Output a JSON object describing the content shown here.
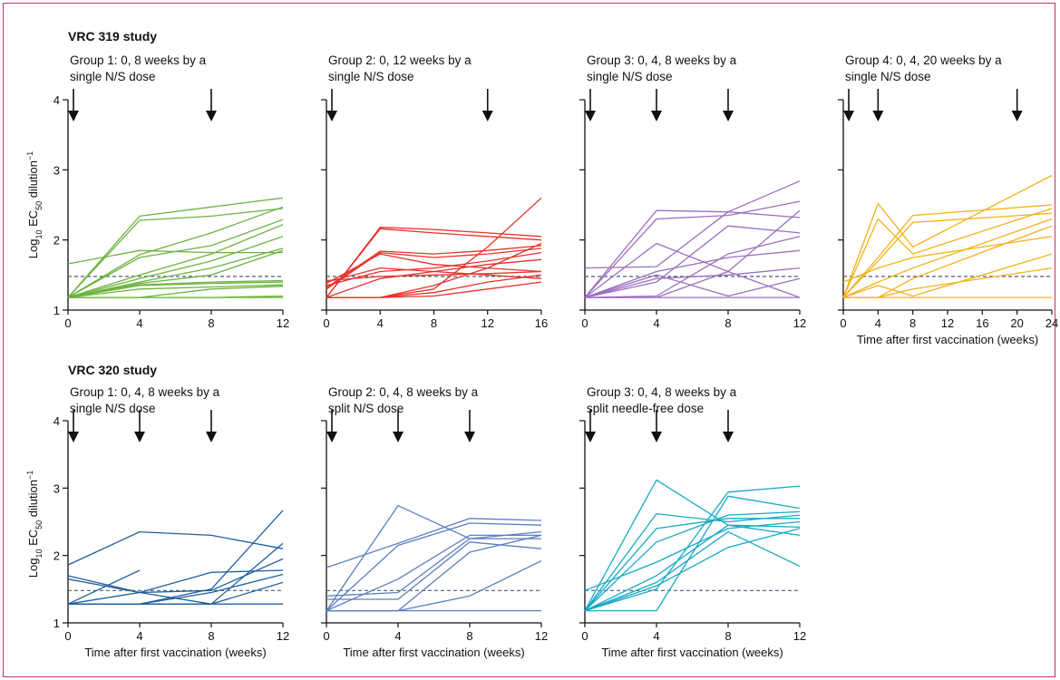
{
  "figure": {
    "study_labels": [
      "VRC 319 study",
      "VRC 320 study"
    ],
    "ylabel_parts": {
      "base": "Log",
      "sub10": "10",
      "ec": " EC",
      "sub50": "50",
      "rest": " dilution",
      "sup": "−1"
    },
    "xlabel": "Time after first vaccination (weeks)"
  },
  "chart_data": [
    {
      "type": "line",
      "study": "VRC 319 study",
      "title_lines": [
        "Group 1: 0, 8 weeks by a",
        "single N/S dose"
      ],
      "color": "#6db33f",
      "xticks": [
        0,
        4,
        8,
        12
      ],
      "xlim": [
        0,
        12
      ],
      "yticks": [
        1,
        2,
        3,
        4
      ],
      "ylim": [
        1,
        4
      ],
      "dose_weeks": [
        0,
        8
      ],
      "threshold": 1.48,
      "xlabel": "",
      "x": [
        0,
        4,
        8,
        12
      ],
      "series": [
        {
          "values": [
            1.18,
            2.34,
            2.47,
            2.6
          ]
        },
        {
          "values": [
            1.18,
            2.28,
            2.34,
            2.45
          ]
        },
        {
          "values": [
            1.18,
            1.79,
            2.1,
            2.47
          ]
        },
        {
          "values": [
            1.18,
            1.75,
            1.92,
            2.29
          ]
        },
        {
          "values": [
            1.18,
            1.5,
            1.8,
            2.22
          ]
        },
        {
          "values": [
            1.18,
            1.45,
            1.7,
            2.05
          ]
        },
        {
          "values": [
            1.18,
            1.4,
            1.6,
            1.88
          ]
        },
        {
          "values": [
            1.18,
            1.38,
            1.5,
            1.85
          ]
        },
        {
          "values": [
            1.66,
            1.85,
            1.82,
            1.82
          ]
        },
        {
          "values": [
            1.18,
            1.36,
            1.4,
            1.42
          ]
        },
        {
          "values": [
            1.18,
            1.35,
            1.38,
            1.4
          ]
        },
        {
          "values": [
            1.18,
            1.3,
            1.33,
            1.36
          ]
        },
        {
          "values": [
            1.18,
            1.18,
            1.3,
            1.34
          ]
        },
        {
          "values": [
            1.18,
            1.18,
            1.18,
            1.18
          ]
        },
        {
          "values": [
            1.18,
            1.18,
            1.18,
            1.2
          ]
        }
      ]
    },
    {
      "type": "line",
      "study": "VRC 319 study",
      "title_lines": [
        "Group 2: 0, 12 weeks by a",
        "single N/S dose"
      ],
      "color": "#e8322b",
      "xticks": [
        0,
        4,
        8,
        12,
        16
      ],
      "xlim": [
        0,
        16
      ],
      "yticks": [
        1,
        2,
        3,
        4
      ],
      "ylim": [
        1,
        4
      ],
      "dose_weeks": [
        0,
        12
      ],
      "threshold": 1.48,
      "xlabel": "",
      "x": [
        0,
        4,
        8,
        12,
        16
      ],
      "series": [
        {
          "values": [
            1.18,
            1.18,
            1.3,
            1.9,
            2.6
          ]
        },
        {
          "values": [
            1.18,
            2.18,
            2.15,
            2.1,
            2.05
          ]
        },
        {
          "values": [
            1.18,
            2.16,
            2.1,
            2.05,
            2.0
          ]
        },
        {
          "values": [
            1.32,
            1.84,
            1.8,
            1.85,
            1.92
          ]
        },
        {
          "values": [
            1.3,
            1.82,
            1.75,
            1.8,
            1.88
          ]
        },
        {
          "values": [
            1.38,
            1.8,
            1.65,
            1.6,
            1.55
          ]
        },
        {
          "values": [
            1.4,
            1.6,
            1.55,
            1.5,
            1.45
          ]
        },
        {
          "values": [
            1.35,
            1.55,
            1.6,
            1.7,
            1.82
          ]
        },
        {
          "values": [
            1.18,
            1.45,
            1.55,
            1.65,
            1.72
          ]
        },
        {
          "values": [
            1.42,
            1.48,
            1.5,
            1.52,
            1.55
          ]
        },
        {
          "values": [
            1.18,
            1.18,
            1.35,
            1.6,
            1.95
          ]
        },
        {
          "values": [
            1.18,
            1.18,
            1.25,
            1.4,
            1.5
          ]
        },
        {
          "values": [
            1.18,
            1.18,
            1.2,
            1.3,
            1.4
          ]
        }
      ]
    },
    {
      "type": "line",
      "study": "VRC 319 study",
      "title_lines": [
        "Group 3: 0, 4, 8 weeks by a",
        "single N/S dose"
      ],
      "color": "#9b6fc0",
      "xticks": [
        0,
        4,
        8,
        12
      ],
      "xlim": [
        0,
        12
      ],
      "yticks": [
        1,
        2,
        3,
        4
      ],
      "ylim": [
        1,
        4
      ],
      "dose_weeks": [
        0,
        4,
        8
      ],
      "threshold": 1.48,
      "xlabel": "",
      "x": [
        0,
        4,
        8,
        12
      ],
      "series": [
        {
          "values": [
            1.18,
            2.42,
            2.4,
            2.84
          ]
        },
        {
          "values": [
            1.18,
            2.3,
            2.35,
            2.55
          ]
        },
        {
          "values": [
            1.18,
            1.95,
            1.55,
            2.42
          ]
        },
        {
          "values": [
            1.6,
            1.62,
            2.4,
            2.32
          ]
        },
        {
          "values": [
            1.18,
            1.4,
            2.2,
            2.1
          ]
        },
        {
          "values": [
            1.18,
            1.2,
            1.8,
            2.05
          ]
        },
        {
          "values": [
            1.18,
            1.55,
            1.75,
            1.85
          ]
        },
        {
          "values": [
            1.18,
            1.45,
            1.5,
            1.6
          ]
        },
        {
          "values": [
            1.18,
            1.5,
            1.2,
            1.45
          ]
        },
        {
          "values": [
            1.18,
            1.18,
            1.55,
            1.18
          ]
        },
        {
          "values": [
            1.18,
            1.18,
            1.18,
            1.18
          ]
        }
      ]
    },
    {
      "type": "line",
      "study": "VRC 319 study",
      "title_lines": [
        "Group 4: 0, 4, 20 weeks by a",
        "single N/S dose"
      ],
      "color": "#f5b11a",
      "xticks": [
        0,
        4,
        8,
        12,
        16,
        20,
        24
      ],
      "xlim": [
        0,
        24
      ],
      "yticks": [
        1,
        2,
        3,
        4
      ],
      "ylim": [
        1,
        4
      ],
      "dose_weeks": [
        0,
        4,
        20
      ],
      "threshold": 1.48,
      "xlabel": "Time after first vaccination (weeks)",
      "x": [
        0,
        4,
        8,
        24
      ],
      "series": [
        {
          "values": [
            1.18,
            2.52,
            1.9,
            2.92
          ]
        },
        {
          "values": [
            1.18,
            2.3,
            1.8,
            2.45
          ]
        },
        {
          "values": [
            1.18,
            1.75,
            2.35,
            2.5
          ]
        },
        {
          "values": [
            1.18,
            1.7,
            2.25,
            2.38
          ]
        },
        {
          "values": [
            1.4,
            1.6,
            1.75,
            2.05
          ]
        },
        {
          "values": [
            1.18,
            1.4,
            1.6,
            2.3
          ]
        },
        {
          "values": [
            1.18,
            1.35,
            1.2,
            1.8
          ]
        },
        {
          "values": [
            1.18,
            1.18,
            1.45,
            2.2
          ]
        },
        {
          "values": [
            1.18,
            1.18,
            1.3,
            1.6
          ]
        },
        {
          "values": [
            1.18,
            1.18,
            1.18,
            1.18
          ]
        }
      ]
    },
    {
      "type": "line",
      "study": "VRC 320 study",
      "title_lines": [
        "Group 1: 0, 4, 8 weeks by a",
        "single N/S dose"
      ],
      "color": "#1f5fa0",
      "xticks": [
        0,
        4,
        8,
        12
      ],
      "xlim": [
        0,
        12
      ],
      "yticks": [
        1,
        2,
        3,
        4
      ],
      "ylim": [
        1,
        4
      ],
      "dose_weeks": [
        0,
        4,
        8
      ],
      "threshold": 1.48,
      "xlabel": "Time after first vaccination (weeks)",
      "x": [
        0,
        4,
        8,
        12
      ],
      "series": [
        {
          "values": [
            1.86,
            2.35,
            2.3,
            2.1
          ]
        },
        {
          "values": [
            1.28,
            1.28,
            1.5,
            2.67
          ]
        },
        {
          "values": [
            1.7,
            1.45,
            1.75,
            1.78
          ]
        },
        {
          "values": [
            1.65,
            1.45,
            1.48,
            1.95
          ]
        },
        {
          "values": [
            1.28,
            1.45,
            1.28,
            2.18
          ]
        },
        {
          "values": [
            1.28,
            1.28,
            1.45,
            1.72
          ]
        },
        {
          "values": [
            1.28,
            1.28,
            1.28,
            1.6
          ]
        },
        {
          "values": [
            1.28,
            1.28,
            1.28,
            1.28
          ]
        },
        {
          "values": [
            1.28,
            1.78,
            null,
            null
          ]
        }
      ]
    },
    {
      "type": "line",
      "study": "VRC 320 study",
      "title_lines": [
        "Group 2: 0, 4, 8 weeks by a",
        "split N/S dose"
      ],
      "color": "#5b7fc0",
      "xticks": [
        0,
        4,
        8,
        12
      ],
      "xlim": [
        0,
        12
      ],
      "yticks": [
        1,
        2,
        3,
        4
      ],
      "ylim": [
        1,
        4
      ],
      "dose_weeks": [
        0,
        4,
        8
      ],
      "threshold": 1.48,
      "xlabel": "Time after first vaccination (weeks)",
      "x": [
        0,
        4,
        8,
        12
      ],
      "series": [
        {
          "values": [
            1.18,
            2.74,
            2.25,
            2.35
          ]
        },
        {
          "values": [
            1.82,
            2.18,
            2.55,
            2.52
          ]
        },
        {
          "values": [
            1.18,
            2.15,
            2.48,
            2.45
          ]
        },
        {
          "values": [
            1.18,
            1.65,
            2.3,
            2.3
          ]
        },
        {
          "values": [
            1.4,
            1.45,
            2.25,
            2.25
          ]
        },
        {
          "values": [
            1.35,
            1.35,
            2.2,
            2.1
          ]
        },
        {
          "values": [
            1.18,
            1.18,
            2.05,
            2.3
          ]
        },
        {
          "values": [
            1.18,
            1.18,
            1.4,
            1.92
          ]
        },
        {
          "values": [
            1.18,
            1.18,
            1.18,
            1.18
          ]
        }
      ]
    },
    {
      "type": "line",
      "study": "VRC 320 study",
      "title_lines": [
        "Group 3: 0, 4, 8 weeks by a",
        "split needle-free dose"
      ],
      "color": "#18a9c4",
      "xticks": [
        0,
        4,
        8,
        12
      ],
      "xlim": [
        0,
        12
      ],
      "yticks": [
        1,
        2,
        3,
        4
      ],
      "ylim": [
        1,
        4
      ],
      "dose_weeks": [
        0,
        4,
        8
      ],
      "threshold": 1.48,
      "xlabel": "Time after first vaccination (weeks)",
      "x": [
        0,
        4,
        8,
        12
      ],
      "series": [
        {
          "values": [
            1.18,
            3.12,
            2.45,
            2.42
          ]
        },
        {
          "values": [
            1.18,
            2.62,
            2.5,
            2.6
          ]
        },
        {
          "values": [
            1.18,
            2.4,
            2.55,
            2.55
          ]
        },
        {
          "values": [
            1.18,
            2.2,
            2.6,
            2.65
          ]
        },
        {
          "values": [
            1.48,
            1.9,
            2.4,
            2.5
          ]
        },
        {
          "values": [
            1.18,
            1.7,
            2.45,
            2.3
          ]
        },
        {
          "values": [
            1.18,
            1.6,
            2.35,
            1.84
          ]
        },
        {
          "values": [
            1.18,
            1.55,
            2.12,
            2.4
          ]
        },
        {
          "values": [
            1.18,
            1.5,
            2.94,
            3.03
          ]
        },
        {
          "values": [
            1.18,
            1.18,
            2.88,
            2.7
          ]
        }
      ]
    }
  ]
}
